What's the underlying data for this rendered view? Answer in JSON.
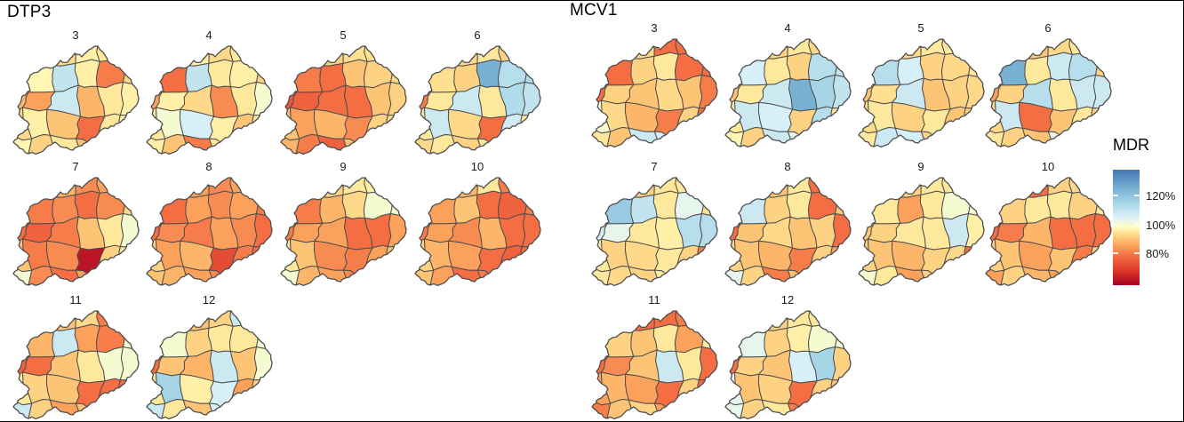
{
  "chart_data": {
    "type": "choropleth_small_multiples",
    "geography": "district map repeated per facet",
    "facet_variable_values": [
      "3",
      "4",
      "5",
      "6",
      "7",
      "8",
      "9",
      "10",
      "11",
      "12"
    ],
    "legend": {
      "title": "MDR",
      "unit": "%",
      "domain": [
        58,
        138
      ],
      "ticks": [
        {
          "label": "120%",
          "value": 120
        },
        {
          "label": "100%",
          "value": 100
        },
        {
          "label": "80%",
          "value": 80
        }
      ],
      "palette": [
        {
          "t": 0.0,
          "color": "#a50026"
        },
        {
          "t": 0.11,
          "color": "#d73027"
        },
        {
          "t": 0.25,
          "color": "#f46d43"
        },
        {
          "t": 0.36,
          "color": "#fdae61"
        },
        {
          "t": 0.45,
          "color": "#fee090"
        },
        {
          "t": 0.5,
          "color": "#ffffbf"
        },
        {
          "t": 0.58,
          "color": "#e0f3f8"
        },
        {
          "t": 0.7,
          "color": "#abd9e9"
        },
        {
          "t": 0.85,
          "color": "#74add1"
        },
        {
          "t": 1.0,
          "color": "#4575b4"
        }
      ]
    },
    "style": {
      "district_border": "#4e4e4e",
      "background": "#ffffff",
      "frame": "#000000",
      "label_color": "#1a1a1a"
    },
    "panels": [
      {
        "title": "DTP3",
        "facets": [
          {
            "label": "3",
            "values": [
              [
                96,
                95,
                93,
                96,
                95,
                96
              ],
              [
                92,
                97,
                110,
                96,
                80,
                93
              ],
              [
                88,
                85,
                108,
                88,
                95,
                96
              ],
              [
                93,
                96,
                90,
                78,
                95,
                96
              ],
              [
                97,
                92,
                95,
                90,
                94,
                95
              ]
            ]
          },
          {
            "label": "4",
            "values": [
              [
                95,
                88,
                96,
                93,
                95,
                95
              ],
              [
                76,
                78,
                110,
                95,
                96,
                92
              ],
              [
                85,
                96,
                93,
                82,
                95,
                100
              ],
              [
                95,
                100,
                106,
                96,
                90,
                95
              ],
              [
                96,
                90,
                80,
                95,
                93,
                95
              ]
            ]
          },
          {
            "label": "5",
            "values": [
              [
                93,
                100,
                92,
                94,
                94,
                94
              ],
              [
                76,
                80,
                78,
                90,
                92,
                93
              ],
              [
                74,
                76,
                78,
                78,
                90,
                92
              ],
              [
                90,
                85,
                88,
                82,
                92,
                93
              ],
              [
                88,
                80,
                76,
                90,
                92,
                94
              ]
            ]
          },
          {
            "label": "6",
            "values": [
              [
                95,
                78,
                93,
                95,
                92,
                95
              ],
              [
                88,
                94,
                92,
                125,
                112,
                113
              ],
              [
                80,
                95,
                108,
                95,
                113,
                110
              ],
              [
                95,
                108,
                93,
                78,
                107,
                95
              ],
              [
                93,
                95,
                92,
                95,
                96,
                94
              ]
            ]
          },
          {
            "label": "7",
            "values": [
              [
                90,
                85,
                88,
                82,
                85,
                88
              ],
              [
                78,
                80,
                82,
                78,
                82,
                93
              ],
              [
                78,
                76,
                80,
                90,
                95,
                100
              ],
              [
                90,
                80,
                82,
                62,
                92,
                95
              ],
              [
                100,
                82,
                78,
                85,
                90,
                92
              ]
            ]
          },
          {
            "label": "8",
            "values": [
              [
                88,
                90,
                85,
                82,
                85,
                88
              ],
              [
                76,
                78,
                85,
                82,
                85,
                80
              ],
              [
                78,
                82,
                80,
                85,
                82,
                78
              ],
              [
                92,
                85,
                88,
                72,
                80,
                78
              ],
              [
                90,
                88,
                85,
                82,
                80,
                88
              ]
            ]
          },
          {
            "label": "9",
            "values": [
              [
                92,
                90,
                93,
                95,
                96,
                95
              ],
              [
                78,
                80,
                88,
                93,
                100,
                100
              ],
              [
                80,
                85,
                85,
                78,
                78,
                85
              ],
              [
                95,
                90,
                82,
                80,
                85,
                90
              ],
              [
                100,
                88,
                85,
                82,
                88,
                92
              ]
            ]
          },
          {
            "label": "10",
            "values": [
              [
                92,
                90,
                88,
                95,
                80,
                88
              ],
              [
                78,
                85,
                90,
                78,
                76,
                80
              ],
              [
                80,
                85,
                82,
                88,
                78,
                78
              ],
              [
                92,
                88,
                85,
                78,
                76,
                78
              ],
              [
                90,
                85,
                78,
                80,
                82,
                85
              ]
            ]
          },
          {
            "label": "11",
            "values": [
              [
                95,
                92,
                90,
                93,
                80,
                95
              ],
              [
                93,
                88,
                108,
                85,
                80,
                100
              ],
              [
                76,
                78,
                90,
                95,
                100,
                100
              ],
              [
                95,
                92,
                90,
                78,
                78,
                78
              ],
              [
                108,
                92,
                85,
                90,
                92,
                93
              ]
            ]
          },
          {
            "label": "12",
            "values": [
              [
                95,
                93,
                90,
                92,
                108,
                95
              ],
              [
                90,
                100,
                92,
                95,
                95,
                100
              ],
              [
                78,
                90,
                88,
                108,
                90,
                100
              ],
              [
                95,
                115,
                96,
                106,
                85,
                92
              ],
              [
                108,
                95,
                90,
                106,
                92,
                95
              ]
            ]
          }
        ]
      },
      {
        "title": "MCV1",
        "facets": [
          {
            "label": "3",
            "values": [
              [
                92,
                90,
                93,
                78,
                78,
                90
              ],
              [
                108,
                78,
                92,
                95,
                78,
                78
              ],
              [
                78,
                92,
                90,
                93,
                90,
                80
              ],
              [
                100,
                93,
                88,
                80,
                92,
                78
              ],
              [
                95,
                90,
                108,
                106,
                90,
                92
              ]
            ]
          },
          {
            "label": "4",
            "values": [
              [
                95,
                108,
                92,
                95,
                93,
                108
              ],
              [
                112,
                106,
                95,
                92,
                112,
                110
              ],
              [
                90,
                95,
                108,
                125,
                115,
                110
              ],
              [
                95,
                108,
                106,
                92,
                112,
                95
              ],
              [
                97,
                92,
                108,
                103,
                95,
                106
              ]
            ]
          },
          {
            "label": "5",
            "values": [
              [
                95,
                78,
                93,
                95,
                95,
                94
              ],
              [
                92,
                112,
                106,
                92,
                93,
                95
              ],
              [
                90,
                94,
                108,
                90,
                92,
                93
              ],
              [
                93,
                95,
                92,
                95,
                90,
                92
              ],
              [
                95,
                108,
                106,
                92,
                93,
                95
              ]
            ]
          },
          {
            "label": "6",
            "values": [
              [
                95,
                80,
                90,
                93,
                95,
                94
              ],
              [
                100,
                125,
                95,
                108,
                112,
                92
              ],
              [
                85,
                92,
                112,
                95,
                108,
                108
              ],
              [
                93,
                108,
                78,
                90,
                95,
                92
              ],
              [
                95,
                92,
                90,
                103,
                95,
                93
              ]
            ]
          },
          {
            "label": "7",
            "values": [
              [
                93,
                80,
                92,
                95,
                95,
                95
              ],
              [
                108,
                118,
                110,
                95,
                103,
                94
              ],
              [
                106,
                103,
                95,
                96,
                112,
                112
              ],
              [
                95,
                92,
                93,
                95,
                92,
                80
              ],
              [
                95,
                93,
                92,
                96,
                95,
                93
              ]
            ]
          },
          {
            "label": "8",
            "values": [
              [
                92,
                80,
                90,
                95,
                78,
                78
              ],
              [
                78,
                108,
                92,
                95,
                78,
                90
              ],
              [
                78,
                90,
                93,
                90,
                92,
                78
              ],
              [
                92,
                90,
                88,
                80,
                92,
                85
              ],
              [
                103,
                92,
                80,
                90,
                92,
                90
              ]
            ]
          },
          {
            "label": "9",
            "values": [
              [
                93,
                108,
                92,
                95,
                95,
                95
              ],
              [
                92,
                95,
                85,
                95,
                100,
                100
              ],
              [
                90,
                92,
                95,
                95,
                108,
                96
              ],
              [
                92,
                90,
                88,
                92,
                93,
                78
              ],
              [
                100,
                95,
                85,
                92,
                93,
                95
              ]
            ]
          },
          {
            "label": "10",
            "values": [
              [
                93,
                108,
                78,
                92,
                93,
                92
              ],
              [
                76,
                92,
                95,
                95,
                92,
                95
              ],
              [
                78,
                80,
                88,
                78,
                78,
                78
              ],
              [
                92,
                90,
                85,
                90,
                80,
                92
              ],
              [
                85,
                92,
                88,
                85,
                90,
                92
              ]
            ]
          },
          {
            "label": "11",
            "values": [
              [
                90,
                85,
                78,
                78,
                80,
                90
              ],
              [
                78,
                92,
                90,
                95,
                85,
                96
              ],
              [
                78,
                82,
                90,
                108,
                95,
                78
              ],
              [
                85,
                88,
                85,
                78,
                92,
                78
              ],
              [
                80,
                90,
                92,
                85,
                88,
                90
              ]
            ]
          },
          {
            "label": "12",
            "values": [
              [
                93,
                88,
                92,
                95,
                95,
                95
              ],
              [
                85,
                103,
                92,
                96,
                100,
                100
              ],
              [
                78,
                92,
                90,
                106,
                115,
                92
              ],
              [
                103,
                90,
                92,
                78,
                92,
                90
              ],
              [
                103,
                92,
                95,
                80,
                92,
                93
              ]
            ]
          }
        ]
      }
    ]
  }
}
